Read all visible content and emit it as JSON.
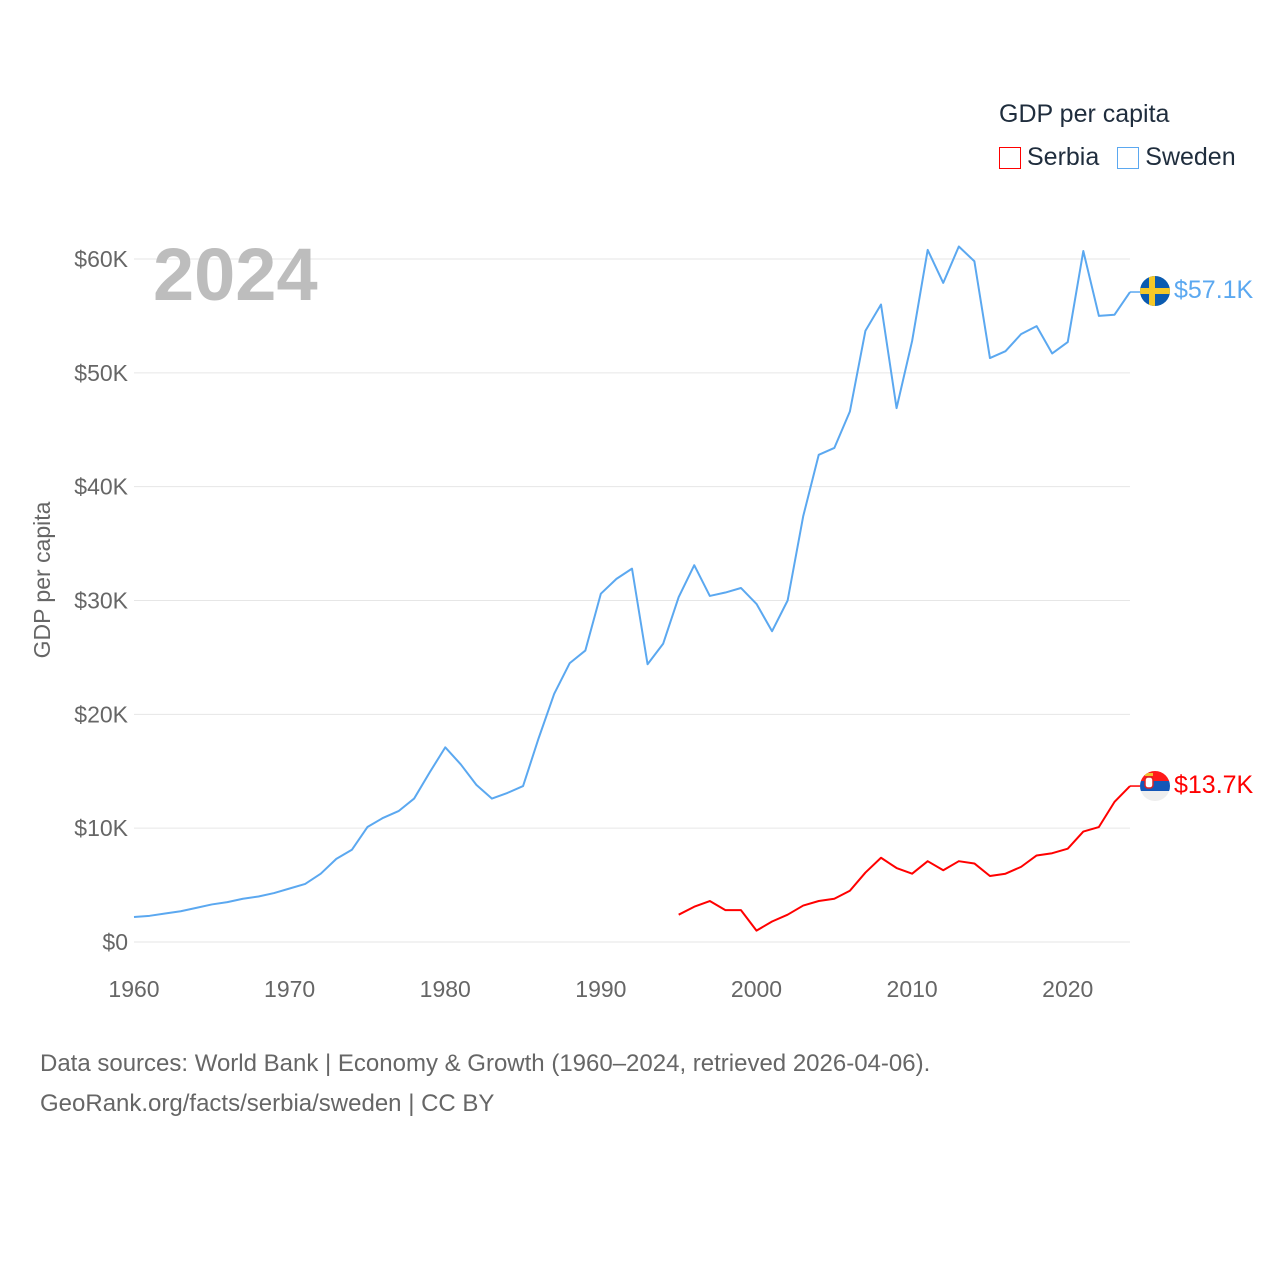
{
  "legend": {
    "title": "GDP per capita",
    "items": [
      {
        "label": "Serbia",
        "color": "#ff0000"
      },
      {
        "label": "Sweden",
        "color": "#5ba8f0"
      }
    ]
  },
  "year_label": "2024",
  "footer": {
    "line1": "Data sources: World Bank | Economy & Growth (1960–2024, retrieved 2026-04-06).",
    "line2": "GeoRank.org/facts/serbia/sweden | CC BY"
  },
  "chart_data": {
    "type": "line",
    "title": "GDP per capita",
    "xlabel": "",
    "ylabel": "GDP per capita",
    "xlim": [
      1960,
      2024
    ],
    "ylim": [
      0,
      60000
    ],
    "x_ticks": [
      1960,
      1970,
      1980,
      1990,
      2000,
      2010,
      2020
    ],
    "x_tick_labels": [
      "1960",
      "1970",
      "1980",
      "1990",
      "2000",
      "2010",
      "2020"
    ],
    "y_ticks": [
      0,
      10000,
      20000,
      30000,
      40000,
      50000,
      60000
    ],
    "y_tick_labels": [
      "$0",
      "$10K",
      "$20K",
      "$30K",
      "$40K",
      "$50K",
      "$60K"
    ],
    "grid": true,
    "legend_position": "top-right",
    "series": [
      {
        "name": "Sweden",
        "color": "#5ba8f0",
        "end_label": "$57.1K",
        "start_year": 1960,
        "values": [
          2.2,
          2.3,
          2.5,
          2.7,
          3.0,
          3.3,
          3.5,
          3.8,
          4.0,
          4.3,
          4.7,
          5.1,
          6.0,
          7.3,
          8.1,
          10.1,
          10.9,
          11.5,
          12.6,
          14.9,
          17.1,
          15.6,
          13.8,
          12.6,
          13.1,
          13.7,
          17.9,
          21.8,
          24.5,
          25.6,
          30.6,
          31.9,
          32.8,
          24.4,
          26.2,
          30.3,
          33.1,
          30.4,
          30.7,
          31.1,
          29.7,
          27.3,
          30.0,
          37.4,
          42.8,
          43.4,
          46.6,
          53.7,
          56.0,
          46.9,
          52.8,
          60.8,
          57.9,
          61.1,
          59.8,
          51.3,
          51.9,
          53.4,
          54.1,
          51.7,
          52.7,
          60.7,
          55.0,
          55.1,
          57.1
        ],
        "unit": "thousand USD"
      },
      {
        "name": "Serbia",
        "color": "#ff0000",
        "end_label": "$13.7K",
        "start_year": 1995,
        "values": [
          2.4,
          3.1,
          3.6,
          2.8,
          2.8,
          1.0,
          1.8,
          2.4,
          3.2,
          3.6,
          3.8,
          4.5,
          6.1,
          7.4,
          6.5,
          6.0,
          7.1,
          6.3,
          7.1,
          6.9,
          5.8,
          6.0,
          6.6,
          7.6,
          7.8,
          8.2,
          9.7,
          10.1,
          12.3,
          13.7
        ],
        "unit": "thousand USD"
      }
    ]
  }
}
